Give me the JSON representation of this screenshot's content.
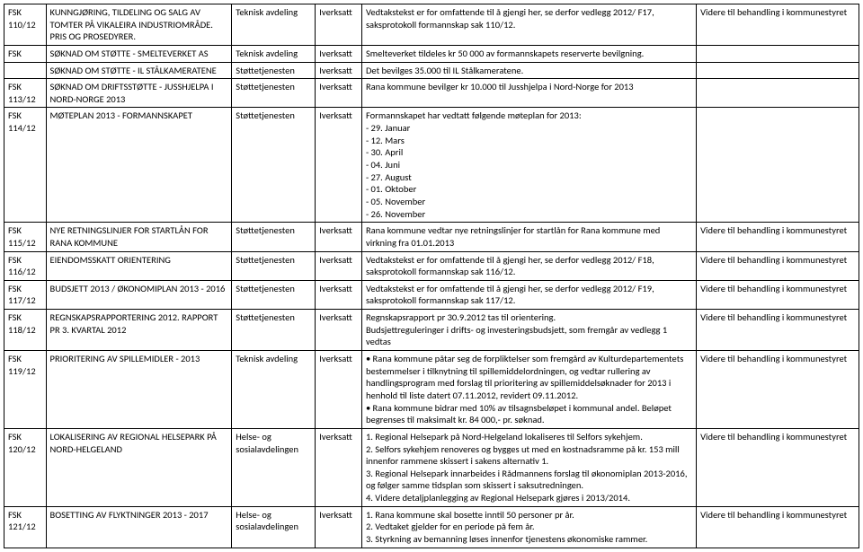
{
  "rows": [
    {
      "id": "FSK 110/12",
      "title": "KUNNGJØRING, TILDELING OG SALG AV TOMTER PÅ VIKALEIRA INDUSTRIOMRÅDE. PRIS OG PROSEDYRER.",
      "dept": "Teknisk avdeling",
      "status": "Iverksatt",
      "decision": "Vedtakstekst er for omfattende til å gjengi her, se derfor vedlegg 2012/ F17, saksprotokoll formannskap sak 110/12.",
      "note": "Videre til behandling i kommunestyret"
    },
    {
      "id": "FSK",
      "title": "SØKNAD OM STØTTE - SMELTEVERKET AS",
      "dept": "Teknisk avdeling",
      "status": "Iverksatt",
      "decision": "Smelteverket tildeles kr 50 000 av formannskapets reserverte bevilgning.",
      "note": ""
    },
    {
      "id": "",
      "title": "SØKNAD OM STØTTE - IL STÅLKAMERATENE",
      "dept": "Støttetjenesten",
      "status": "Iverksatt",
      "decision": "Det bevilges 35.000 til IL Stålkameratene.",
      "note": ""
    },
    {
      "id": "FSK 113/12",
      "title": "SØKNAD OM DRIFTSSTØTTE - JUSSHJELPA I NORD-NORGE 2013",
      "dept": "Støttetjenesten",
      "status": "Iverksatt",
      "decision": "Rana kommune bevilger kr 10.000 til Jusshjelpa i Nord-Norge for 2013",
      "note": ""
    },
    {
      "id": "FSK 114/12",
      "title": "MØTEPLAN 2013 - FORMANNSKAPET",
      "dept": "Støttetjenesten",
      "status": "Iverksatt",
      "decision": "Formannskapet har vedtatt følgende møteplan for 2013:\n- 29. Januar\n- 12. Mars\n- 30. April\n- 04. Juni\n- 27. August\n- 01. Oktober\n- 05. November\n- 26. November",
      "note": ""
    },
    {
      "id": "FSK 115/12",
      "title": "NYE RETNINGSLINJER FOR STARTLÅN FOR RANA KOMMUNE",
      "dept": "Støttetjenesten",
      "status": "Iverksatt",
      "decision": "Rana kommune vedtar nye retningslinjer for startlån for Rana kommune med virkning fra  01.01.2013",
      "note": "Videre til behandling i kommunestyret"
    },
    {
      "id": "FSK 116/12",
      "title": "EIENDOMSSKATT ORIENTERING",
      "dept": "Støttetjenesten",
      "status": "Iverksatt",
      "decision": "Vedtakstekst er for omfattende til å gjengi her, se derfor vedlegg 2012/ F18, saksprotokoll formannskap sak 116/12.",
      "note": "Videre til behandling i kommunestyret"
    },
    {
      "id": "FSK 117/12",
      "title": "BUDSJETT 2013 / ØKONOMIPLAN 2013 - 2016",
      "dept": "Støttetjenesten",
      "status": "Iverksatt",
      "decision": "Vedtakstekst er for omfattende til å gjengi her, se derfor vedlegg 2012/ F19, saksprotokoll formannskap sak 117/12.",
      "note": "Videre til behandling i kommunestyret"
    },
    {
      "id": "FSK 118/12",
      "title": "REGNSKAPSRAPPORTERING 2012. RAPPORT PR 3. KVARTAL 2012",
      "dept": "Støttetjenesten",
      "status": "Iverksatt",
      "decision": "Regnskapsrapport pr 30.9.2012 tas til orientering.\nBudsjettreguleringer i drifts- og investeringsbudsjett, som fremgår av vedlegg 1 vedtas",
      "note": "Videre til behandling i kommunestyret"
    },
    {
      "id": "FSK 119/12",
      "title": "PRIORITERING AV SPILLEMIDLER - 2013",
      "dept": "Teknisk avdeling",
      "status": "Iverksatt",
      "decision": "• Rana kommune påtar seg de forpliktelser som fremgård av Kulturdepartementets bestemmelser i tilknytning til spillemiddelordningen, og vedtar rullering av handlingsprogram med forslag til prioritering av spillemiddelsøknader for 2013 i henhold til liste datert 07.11.2012, revidert 09.11.2012.\n• Rana kommune bidrar med 10% av tilsagnsbeløpet i kommunal andel. Beløpet begrenses til maksimalt kr. 84 000,- pr. søknad.",
      "note": "Videre til behandling i kommunestyret"
    },
    {
      "id": "FSK 120/12",
      "title": "LOKALISERING AV REGIONAL HELSEPARK PÅ NORD-HELGELAND",
      "dept": "Helse- og sosialavdelingen",
      "status": "Iverksatt",
      "decision": "1. Regional Helsepark på Nord-Helgeland lokaliseres til Selfors sykehjem.\n2. Selfors sykehjem renoveres og bygges ut med en kostnadsramme på kr. 153 mill innenfor rammene skissert i sakens alternativ 1.\n3. Regional Helsepark innarbeides i Rådmannens forslag til økonomiplan 2013-2016, og følger samme tidsplan som skissert i saksutredningen.\n4. Videre detaljplanlegging av Regional Helsepark gjøres i 2013/2014.",
      "note": "Videre til behandling i kommunestyret"
    },
    {
      "id": "FSK 121/12",
      "title": "BOSETTING AV FLYKTNINGER 2013  - 2017",
      "dept": "Helse- og sosialavdelingen",
      "status": "Iverksatt",
      "decision": "1. Rana kommune skal bosette inntil 50 personer pr år.\n2. Vedtaket gjelder for en periode på fem år.\n3. Styrkning av bemanning løses innenfor tjenestens økonomiske rammer.",
      "note": "Videre til behandling i kommunestyret"
    }
  ]
}
